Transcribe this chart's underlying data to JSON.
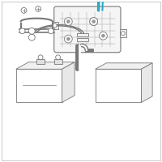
{
  "background_color": "#ffffff",
  "border_color": "#d0d0d0",
  "line_color": "#999999",
  "dark_line": "#777777",
  "highlight_color": "#29a8c4",
  "figsize": [
    2.0,
    2.0
  ],
  "dpi": 100
}
